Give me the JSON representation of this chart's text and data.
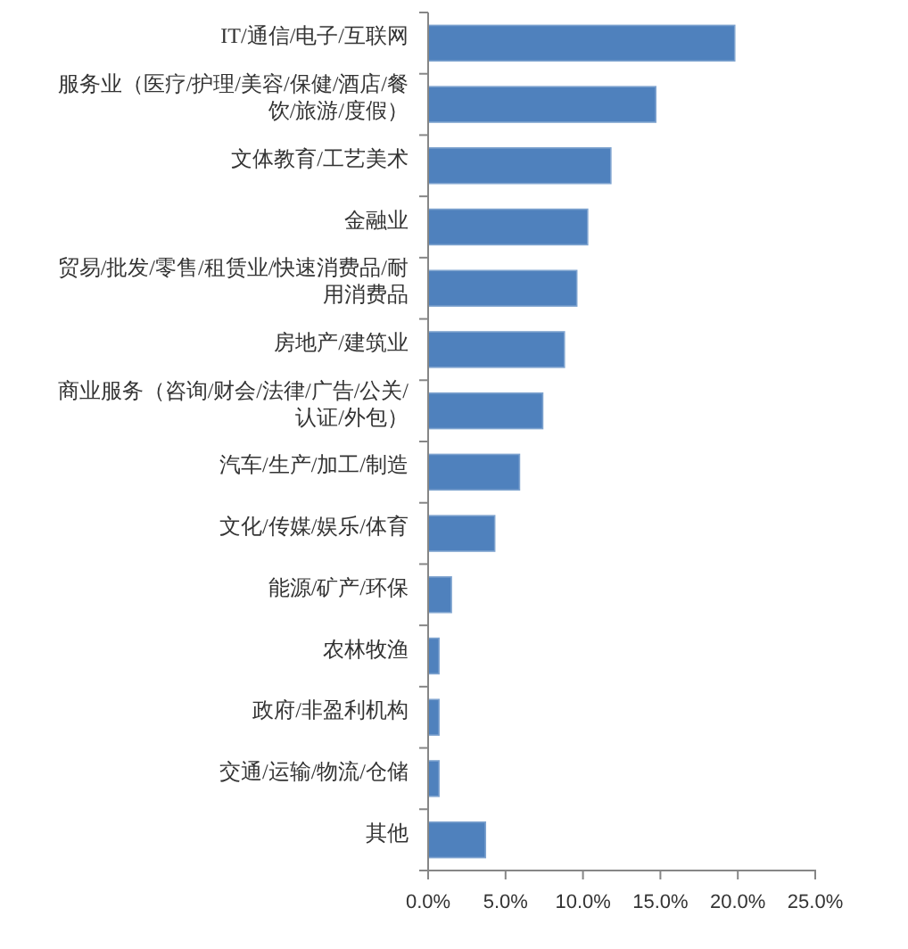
{
  "chart_data": {
    "type": "bar",
    "orientation": "horizontal",
    "categories": [
      "IT/通信/电子/互联网",
      "服务业（医疗/护理/美容/保健/酒店/餐饮/旅游/度假）",
      "文体教育/工艺美术",
      "金融业",
      "贸易/批发/零售/租赁业/快速消费品/耐用消费品",
      "房地产/建筑业",
      "商业服务（咨询/财会/法律/广告/公关/认证/外包）",
      "汽车/生产/加工/制造",
      "文化/传媒/娱乐/体育",
      "能源/矿产/环保",
      "农林牧渔",
      "政府/非盈利机构",
      "交通/运输/物流/仓储",
      "其他"
    ],
    "values": [
      19.8,
      14.7,
      11.8,
      10.3,
      9.6,
      8.8,
      7.4,
      5.9,
      4.3,
      1.5,
      0.7,
      0.7,
      0.7,
      3.7
    ],
    "color": "#4f81bd",
    "xlim": [
      0,
      25
    ],
    "xticks": [
      {
        "value": 0,
        "label": "0.0%"
      },
      {
        "value": 5,
        "label": "5.0%"
      },
      {
        "value": 10,
        "label": "10.0%"
      },
      {
        "value": 15,
        "label": "15.0%"
      },
      {
        "value": 20,
        "label": "20.0%"
      },
      {
        "value": 25,
        "label": "25.0%"
      }
    ]
  }
}
